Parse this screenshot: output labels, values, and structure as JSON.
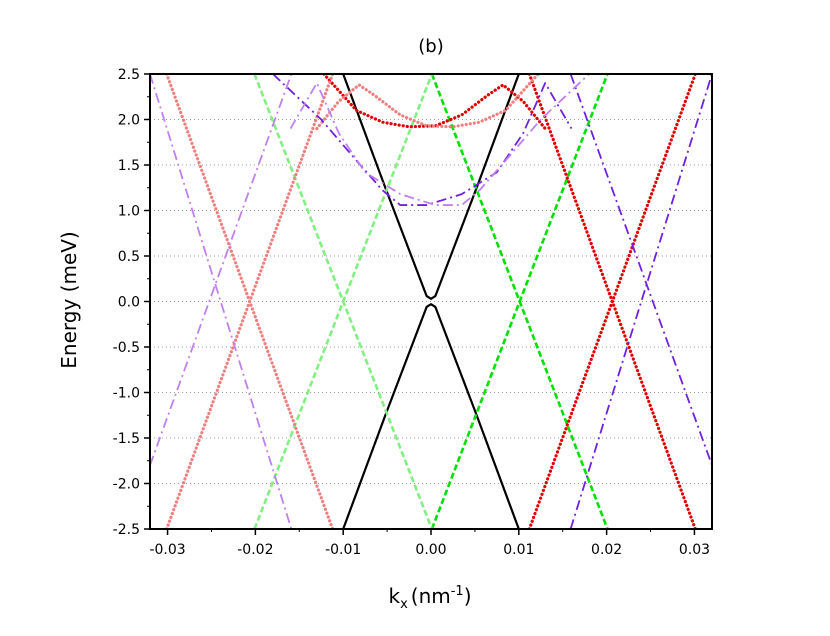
{
  "chart_data": {
    "type": "line",
    "title": "(b)",
    "xlabel": {
      "base": "k",
      "sub": "x",
      "unit": "(nm",
      "sup": "-1",
      "close": ")"
    },
    "ylabel": "Energy (meV)",
    "xlim": [
      -0.032,
      0.032
    ],
    "ylim": [
      -2.5,
      2.5
    ],
    "x_ticks": [
      -0.03,
      -0.02,
      -0.01,
      0.0,
      0.01,
      0.02,
      0.03
    ],
    "x_tick_labels": [
      "-0.03",
      "-0.02",
      "-0.01",
      "0.00",
      "0.01",
      "0.02",
      "0.03"
    ],
    "y_ticks": [
      2.5,
      2.0,
      1.5,
      1.0,
      0.5,
      0.0,
      -0.5,
      -1.0,
      -1.5,
      -2.0,
      -2.5
    ],
    "y_tick_labels": [
      "2.5",
      "2.0",
      "1.5",
      "1.0",
      "0.5",
      "0.0",
      "-0.5",
      "-1.0",
      "-1.5",
      "-2.0",
      "-2.5"
    ],
    "grid": {
      "horizontal": true,
      "style": "dotted"
    },
    "series": [
      {
        "color": "#000000",
        "dash": "solid",
        "segments": [
          {
            "x": [
              -0.01,
              -0.0052,
              -0.0005,
              0.0,
              0.0005,
              0.0052,
              0.01
            ],
            "y": [
              2.5,
              1.25,
              0.06,
              0.03,
              0.06,
              1.25,
              2.5
            ]
          },
          {
            "x": [
              -0.01,
              -0.0052,
              -0.0005,
              0.0,
              0.0005,
              0.0052,
              0.01
            ],
            "y": [
              -2.5,
              -1.25,
              -0.06,
              -0.03,
              -0.06,
              -1.25,
              -2.5
            ]
          }
        ]
      },
      {
        "color": "#00e000",
        "dash": "dash",
        "segments": [
          {
            "x": [
              0.0001,
              0.0201
            ],
            "y": [
              2.5,
              -2.5
            ]
          },
          {
            "x": [
              0.0001,
              0.0201
            ],
            "y": [
              -2.5,
              2.5
            ]
          }
        ]
      },
      {
        "color": "#80f080",
        "dash": "dash",
        "segments": [
          {
            "x": [
              -0.0201,
              0.0001
            ],
            "y": [
              -2.5,
              2.5
            ]
          },
          {
            "x": [
              -0.0201,
              0.0001
            ],
            "y": [
              2.5,
              -2.5
            ]
          }
        ]
      },
      {
        "color": "#e00000",
        "dash": "dot",
        "segments": [
          {
            "x": [
              0.0112,
              0.0301
            ],
            "y": [
              -2.5,
              2.5
            ]
          },
          {
            "x": [
              0.0112,
              0.0301
            ],
            "y": [
              2.5,
              -2.5
            ]
          },
          {
            "x": [
              -0.0122,
              -0.0085,
              -0.0055,
              -0.0025,
              0.0005,
              0.0035,
              0.0065,
              0.0082,
              0.0105,
              0.013
            ],
            "y": [
              2.5,
              2.1,
              1.97,
              1.92,
              1.93,
              2.05,
              2.27,
              2.38,
              2.2,
              1.9
            ]
          }
        ]
      },
      {
        "color": "#f08080",
        "dash": "dot",
        "segments": [
          {
            "x": [
              -0.0301,
              -0.0112
            ],
            "y": [
              -2.5,
              2.5
            ]
          },
          {
            "x": [
              -0.0301,
              -0.0112
            ],
            "y": [
              2.5,
              -2.5
            ]
          },
          {
            "x": [
              -0.013,
              -0.0105,
              -0.0082,
              -0.0065,
              -0.0035,
              -0.0005,
              0.0025,
              0.0055,
              0.0085,
              0.0122
            ],
            "y": [
              1.9,
              2.2,
              2.38,
              2.27,
              2.05,
              1.93,
              1.92,
              1.97,
              2.1,
              2.5
            ]
          }
        ]
      },
      {
        "color": "#7020e0",
        "dash": "dashdot",
        "segments": [
          {
            "x": [
              0.0159,
              0.032
            ],
            "y": [
              -2.5,
              2.5
            ]
          },
          {
            "x": [
              0.0159,
              0.032
            ],
            "y": [
              2.5,
              -1.8
            ]
          },
          {
            "x": [
              -0.018,
              -0.0125,
              -0.0085,
              -0.0055,
              -0.0035,
              -0.0005,
              0.0035,
              0.0075,
              0.0105,
              0.013,
              0.016
            ],
            "y": [
              2.5,
              2.0,
              1.55,
              1.22,
              1.06,
              1.06,
              1.18,
              1.42,
              1.85,
              2.4,
              1.9
            ]
          }
        ]
      },
      {
        "color": "#c080f0",
        "dash": "dashdot",
        "segments": [
          {
            "x": [
              -0.032,
              -0.0159
            ],
            "y": [
              -1.8,
              2.5
            ]
          },
          {
            "x": [
              -0.032,
              -0.0159
            ],
            "y": [
              2.5,
              -2.5
            ]
          },
          {
            "x": [
              -0.016,
              -0.013,
              -0.0105,
              -0.0075,
              -0.0035,
              0.0005,
              0.0035,
              0.0055,
              0.0085,
              0.0125,
              0.018
            ],
            "y": [
              1.9,
              2.4,
              1.85,
              1.42,
              1.18,
              1.06,
              1.06,
              1.22,
              1.55,
              2.0,
              2.5
            ]
          }
        ]
      }
    ]
  }
}
